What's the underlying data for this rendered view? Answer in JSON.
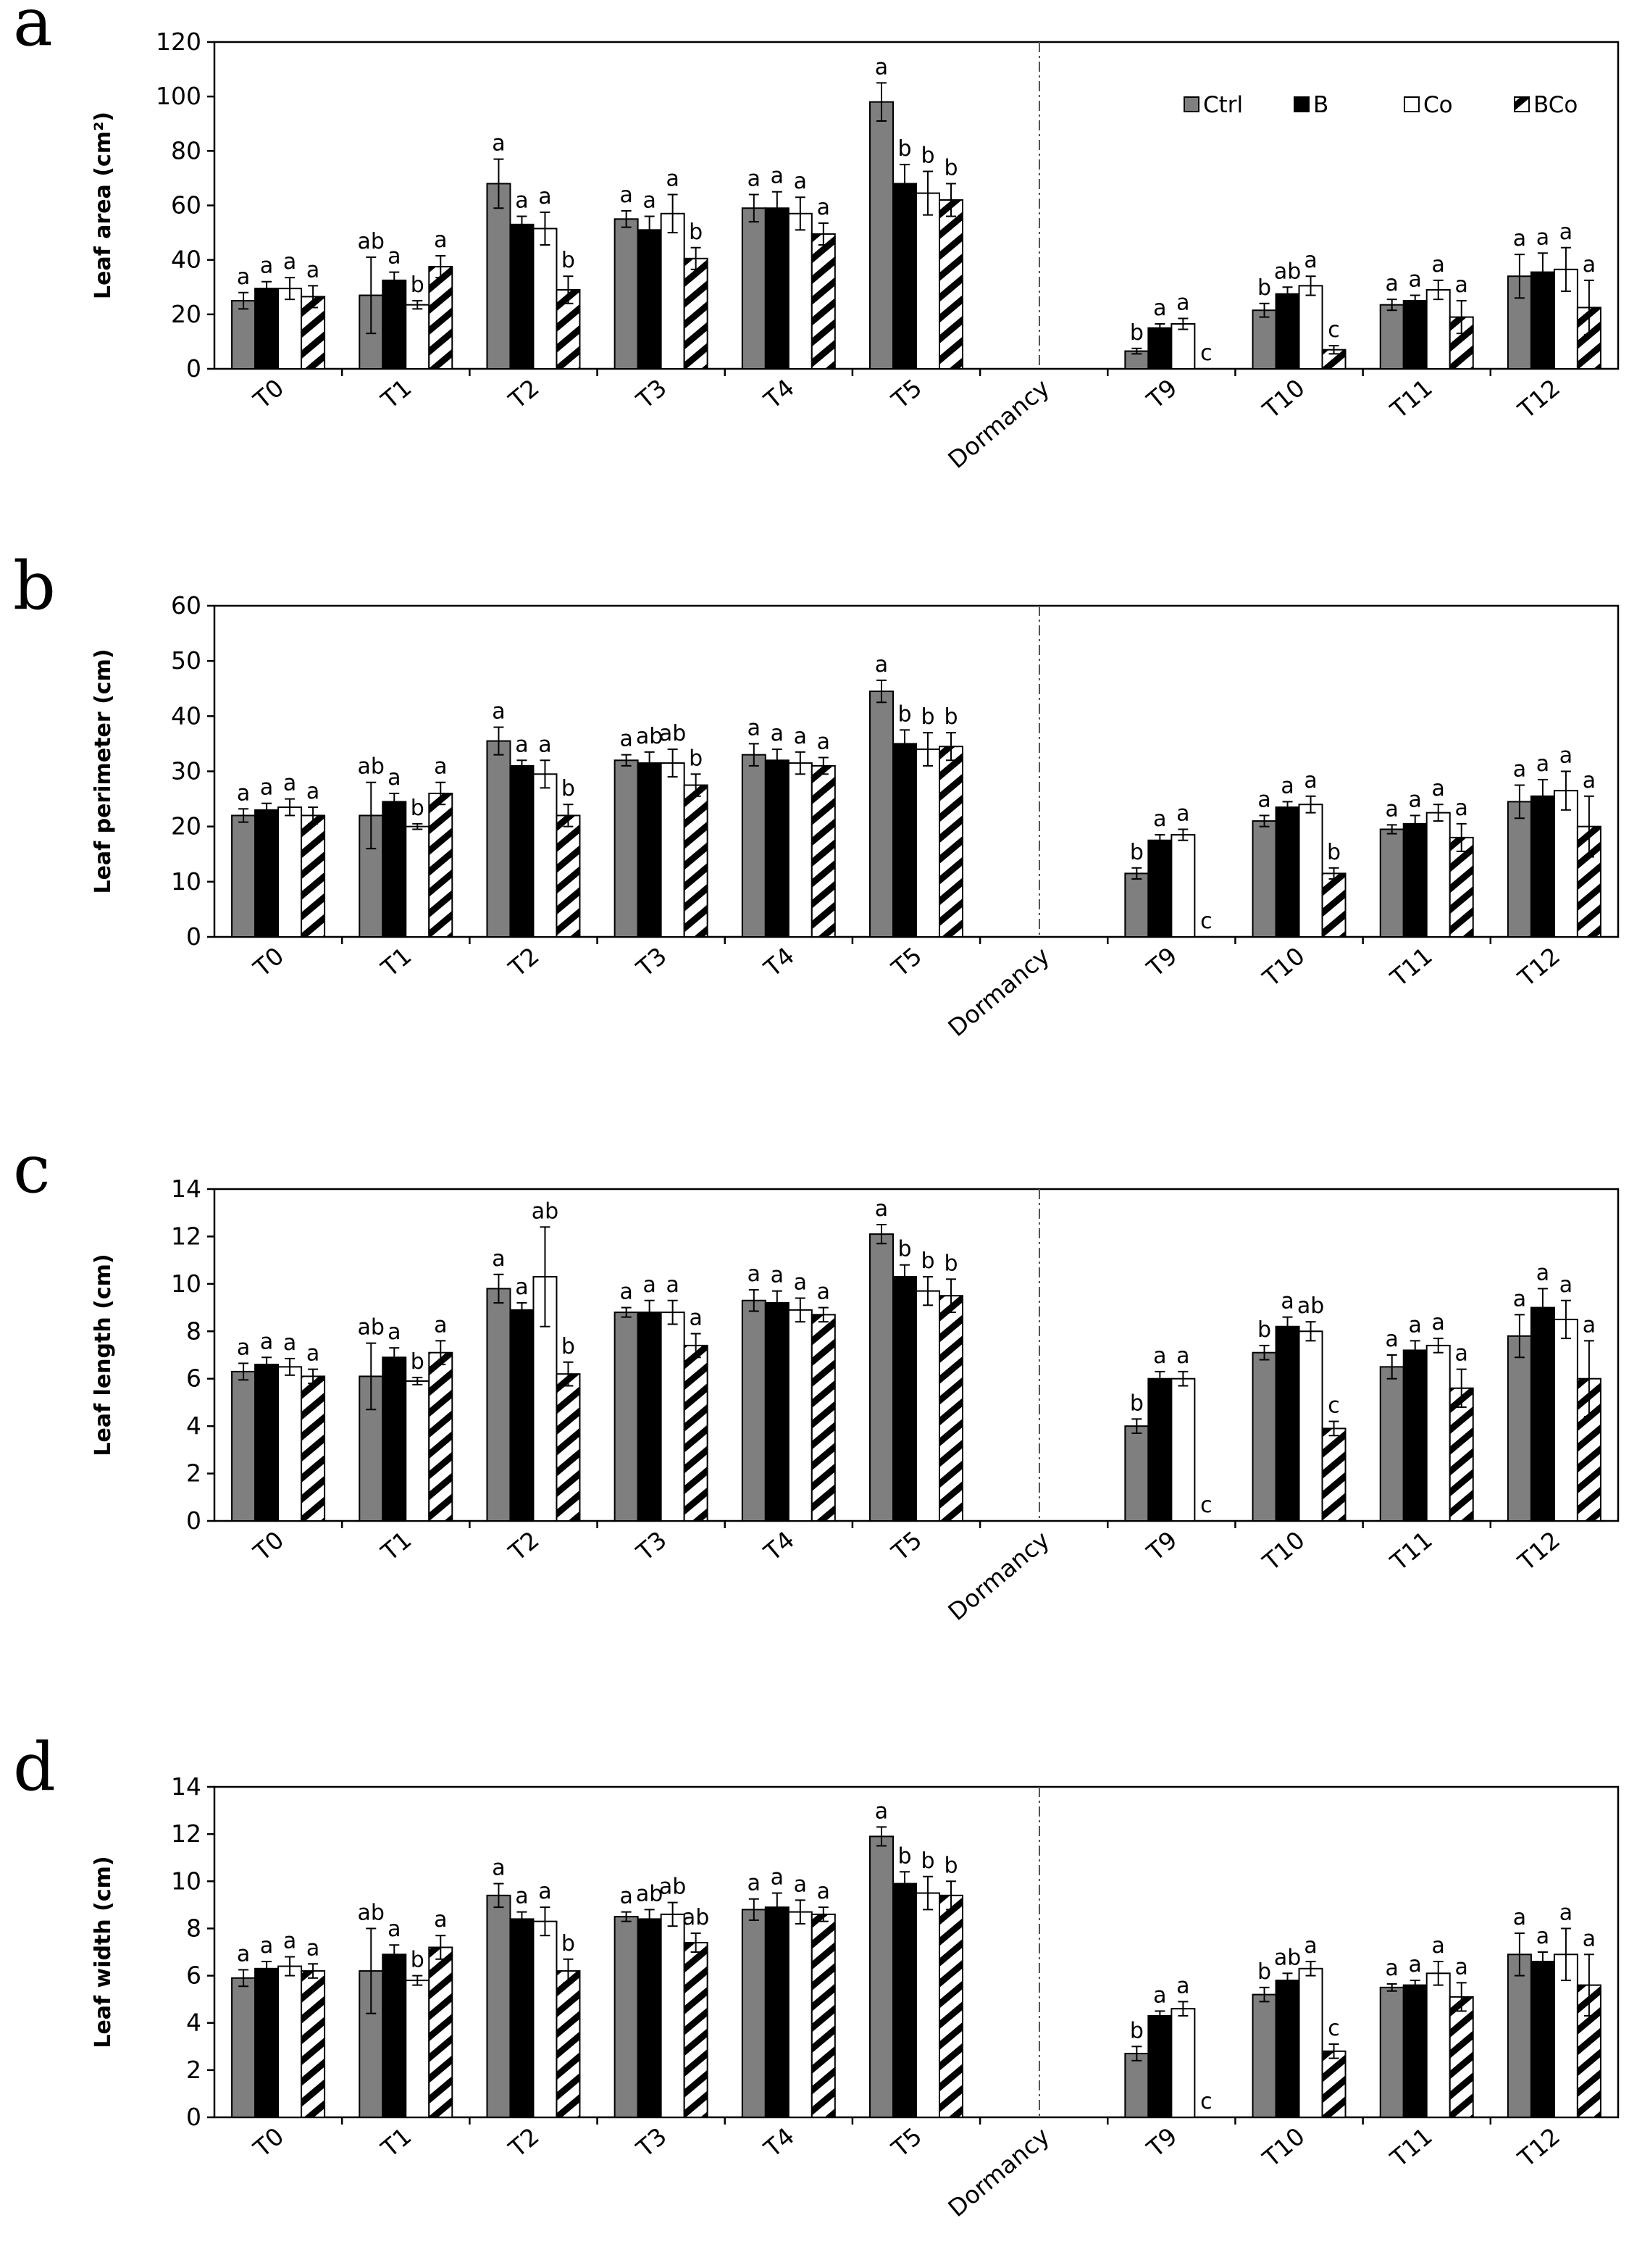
{
  "legend": {
    "series": [
      {
        "name": "Ctrl",
        "fill": "#7f7f7f"
      },
      {
        "name": "B",
        "fill": "#000000"
      },
      {
        "name": "Co",
        "fill": "#ffffff"
      },
      {
        "name": "BCo",
        "fill": "pattern"
      }
    ]
  },
  "chart_data": [
    {
      "type": "bar",
      "panel": "a",
      "ylabel": "Leaf area (cm²)",
      "ylim": [
        0,
        120
      ],
      "yticks": [
        0,
        20,
        40,
        60,
        80,
        100,
        120
      ],
      "categories": [
        "T0",
        "T1",
        "T2",
        "T3",
        "T4",
        "T5",
        "Dormancy",
        "T9",
        "T10",
        "T11",
        "T12"
      ],
      "series": [
        {
          "name": "Ctrl",
          "values": [
            25,
            27,
            68,
            55,
            59,
            98,
            null,
            6.5,
            21.5,
            23.5,
            34
          ],
          "errors": [
            3,
            14,
            9,
            3,
            5,
            7,
            null,
            1,
            2.5,
            2,
            8
          ],
          "letters": [
            "a",
            "ab",
            "a",
            "a",
            "a",
            "a",
            "",
            "b",
            "b",
            "a",
            "a"
          ]
        },
        {
          "name": "B",
          "values": [
            29.5,
            32.5,
            53,
            51,
            59,
            68,
            null,
            15,
            27.5,
            25,
            35.5
          ],
          "errors": [
            2.5,
            3,
            3,
            5,
            6,
            7,
            null,
            1.5,
            2.5,
            2,
            7
          ],
          "letters": [
            "a",
            "a",
            "a",
            "a",
            "a",
            "b",
            "",
            "a",
            "ab",
            "a",
            "a"
          ]
        },
        {
          "name": "Co",
          "values": [
            29.5,
            23.5,
            51.5,
            57,
            57,
            64.5,
            null,
            16.5,
            30.5,
            29,
            36.5
          ],
          "errors": [
            4,
            1.5,
            6,
            7,
            6,
            8,
            null,
            2,
            3.5,
            3.5,
            8
          ],
          "letters": [
            "a",
            "b",
            "a",
            "a",
            "a",
            "b",
            "",
            "a",
            "a",
            "a",
            "a"
          ]
        },
        {
          "name": "BCo",
          "values": [
            26.5,
            37.5,
            29,
            40.5,
            49.5,
            62,
            null,
            0,
            7,
            19,
            22.5
          ],
          "errors": [
            4,
            4,
            5,
            4,
            4,
            6,
            null,
            0,
            1.5,
            6,
            10
          ],
          "letters": [
            "a",
            "a",
            "b",
            "b",
            "a",
            "b",
            "",
            "c",
            "c",
            "a",
            "a"
          ]
        }
      ]
    },
    {
      "type": "bar",
      "panel": "b",
      "ylabel": "Leaf perimeter (cm)",
      "ylim": [
        0,
        60
      ],
      "yticks": [
        0,
        10,
        20,
        30,
        40,
        50,
        60
      ],
      "categories": [
        "T0",
        "T1",
        "T2",
        "T3",
        "T4",
        "T5",
        "Dormancy",
        "T9",
        "T10",
        "T11",
        "T12"
      ],
      "series": [
        {
          "name": "Ctrl",
          "values": [
            22,
            22,
            35.5,
            32,
            33,
            44.5,
            null,
            11.5,
            21,
            19.5,
            24.5
          ],
          "errors": [
            1.2,
            6,
            2.5,
            1,
            2,
            2,
            null,
            1,
            1,
            0.8,
            3
          ],
          "letters": [
            "a",
            "ab",
            "a",
            "a",
            "a",
            "a",
            "",
            "b",
            "a",
            "a",
            "a"
          ]
        },
        {
          "name": "B",
          "values": [
            23,
            24.5,
            31,
            31.5,
            32,
            35,
            null,
            17.5,
            23.5,
            20.5,
            25.5
          ],
          "errors": [
            1.2,
            1.5,
            1,
            2,
            2,
            2.5,
            null,
            1,
            1,
            1.5,
            3
          ],
          "letters": [
            "a",
            "a",
            "a",
            "ab",
            "a",
            "b",
            "",
            "a",
            "a",
            "a",
            "a"
          ]
        },
        {
          "name": "Co",
          "values": [
            23.5,
            20,
            29.5,
            31.5,
            31.5,
            34,
            null,
            18.5,
            24,
            22.5,
            26.5
          ],
          "errors": [
            1.5,
            0.5,
            2.5,
            2.5,
            2,
            3,
            null,
            1,
            1.5,
            1.5,
            3.5
          ],
          "letters": [
            "a",
            "b",
            "a",
            "ab",
            "a",
            "b",
            "",
            "a",
            "a",
            "a",
            "a"
          ]
        },
        {
          "name": "BCo",
          "values": [
            22,
            26,
            22,
            27.5,
            31,
            34.5,
            null,
            0,
            11.5,
            18,
            20
          ],
          "errors": [
            1.5,
            2,
            2,
            2,
            1.5,
            2.5,
            null,
            0,
            1,
            2.5,
            5.5
          ],
          "letters": [
            "a",
            "a",
            "b",
            "b",
            "a",
            "b",
            "",
            "c",
            "b",
            "a",
            "a"
          ]
        }
      ]
    },
    {
      "type": "bar",
      "panel": "c",
      "ylabel": "Leaf length (cm)",
      "ylim": [
        0,
        14
      ],
      "yticks": [
        0,
        2,
        4,
        6,
        8,
        10,
        12,
        14
      ],
      "categories": [
        "T0",
        "T1",
        "T2",
        "T3",
        "T4",
        "T5",
        "Dormancy",
        "T9",
        "T10",
        "T11",
        "T12"
      ],
      "series": [
        {
          "name": "Ctrl",
          "values": [
            6.3,
            6.1,
            9.8,
            8.8,
            9.3,
            12.1,
            null,
            4,
            7.1,
            6.5,
            7.8
          ],
          "errors": [
            0.35,
            1.4,
            0.6,
            0.2,
            0.45,
            0.4,
            null,
            0.3,
            0.3,
            0.5,
            0.9
          ],
          "letters": [
            "a",
            "ab",
            "a",
            "a",
            "a",
            "a",
            "",
            "b",
            "b",
            "a",
            "a"
          ]
        },
        {
          "name": "B",
          "values": [
            6.6,
            6.9,
            8.9,
            8.8,
            9.2,
            10.3,
            null,
            6,
            8.2,
            7.2,
            9
          ],
          "errors": [
            0.3,
            0.4,
            0.3,
            0.5,
            0.5,
            0.5,
            null,
            0.3,
            0.4,
            0.4,
            0.8
          ],
          "letters": [
            "a",
            "a",
            "a",
            "a",
            "a",
            "b",
            "",
            "a",
            "a",
            "a",
            "a"
          ]
        },
        {
          "name": "Co",
          "values": [
            6.5,
            5.9,
            10.3,
            8.8,
            8.9,
            9.7,
            null,
            6,
            8,
            7.4,
            8.5
          ],
          "errors": [
            0.35,
            0.15,
            2.1,
            0.5,
            0.5,
            0.6,
            null,
            0.3,
            0.4,
            0.3,
            0.8
          ],
          "letters": [
            "a",
            "b",
            "ab",
            "a",
            "a",
            "b",
            "",
            "a",
            "ab",
            "a",
            "a"
          ]
        },
        {
          "name": "BCo",
          "values": [
            6.1,
            7.1,
            6.2,
            7.4,
            8.7,
            9.5,
            null,
            0,
            3.9,
            5.6,
            6
          ],
          "errors": [
            0.3,
            0.5,
            0.5,
            0.5,
            0.3,
            0.7,
            null,
            0,
            0.3,
            0.8,
            1.6
          ],
          "letters": [
            "a",
            "a",
            "b",
            "a",
            "a",
            "b",
            "",
            "c",
            "c",
            "a",
            "a"
          ]
        }
      ]
    },
    {
      "type": "bar",
      "panel": "d",
      "ylabel": "Leaf width (cm)",
      "ylim": [
        0,
        14
      ],
      "yticks": [
        0,
        2,
        4,
        6,
        8,
        10,
        12,
        14
      ],
      "categories": [
        "T0",
        "T1",
        "T2",
        "T3",
        "T4",
        "T5",
        "Dormancy",
        "T9",
        "T10",
        "T11",
        "T12"
      ],
      "series": [
        {
          "name": "Ctrl",
          "values": [
            5.9,
            6.2,
            9.4,
            8.5,
            8.8,
            11.9,
            null,
            2.7,
            5.2,
            5.5,
            6.9
          ],
          "errors": [
            0.35,
            1.8,
            0.5,
            0.2,
            0.45,
            0.4,
            null,
            0.3,
            0.3,
            0.15,
            0.9
          ],
          "letters": [
            "a",
            "ab",
            "a",
            "a",
            "a",
            "a",
            "",
            "b",
            "b",
            "a",
            "a"
          ]
        },
        {
          "name": "B",
          "values": [
            6.3,
            6.9,
            8.4,
            8.4,
            8.9,
            9.9,
            null,
            4.3,
            5.8,
            5.6,
            6.6
          ],
          "errors": [
            0.3,
            0.4,
            0.3,
            0.4,
            0.6,
            0.5,
            null,
            0.2,
            0.3,
            0.2,
            0.4
          ],
          "letters": [
            "a",
            "a",
            "a",
            "ab",
            "a",
            "b",
            "",
            "a",
            "ab",
            "a",
            "a"
          ]
        },
        {
          "name": "Co",
          "values": [
            6.4,
            5.8,
            8.3,
            8.6,
            8.7,
            9.5,
            null,
            4.6,
            6.3,
            6.1,
            6.9
          ],
          "errors": [
            0.4,
            0.2,
            0.6,
            0.5,
            0.5,
            0.7,
            null,
            0.3,
            0.3,
            0.5,
            1.1
          ],
          "letters": [
            "a",
            "b",
            "a",
            "ab",
            "a",
            "b",
            "",
            "a",
            "a",
            "a",
            "a"
          ]
        },
        {
          "name": "BCo",
          "values": [
            6.2,
            7.2,
            6.2,
            7.4,
            8.6,
            9.4,
            null,
            0,
            2.8,
            5.1,
            5.6
          ],
          "errors": [
            0.3,
            0.5,
            0.5,
            0.4,
            0.3,
            0.6,
            null,
            0,
            0.3,
            0.6,
            1.3
          ],
          "letters": [
            "a",
            "a",
            "b",
            "ab",
            "a",
            "b",
            "",
            "c",
            "c",
            "a",
            "a"
          ]
        }
      ]
    }
  ]
}
